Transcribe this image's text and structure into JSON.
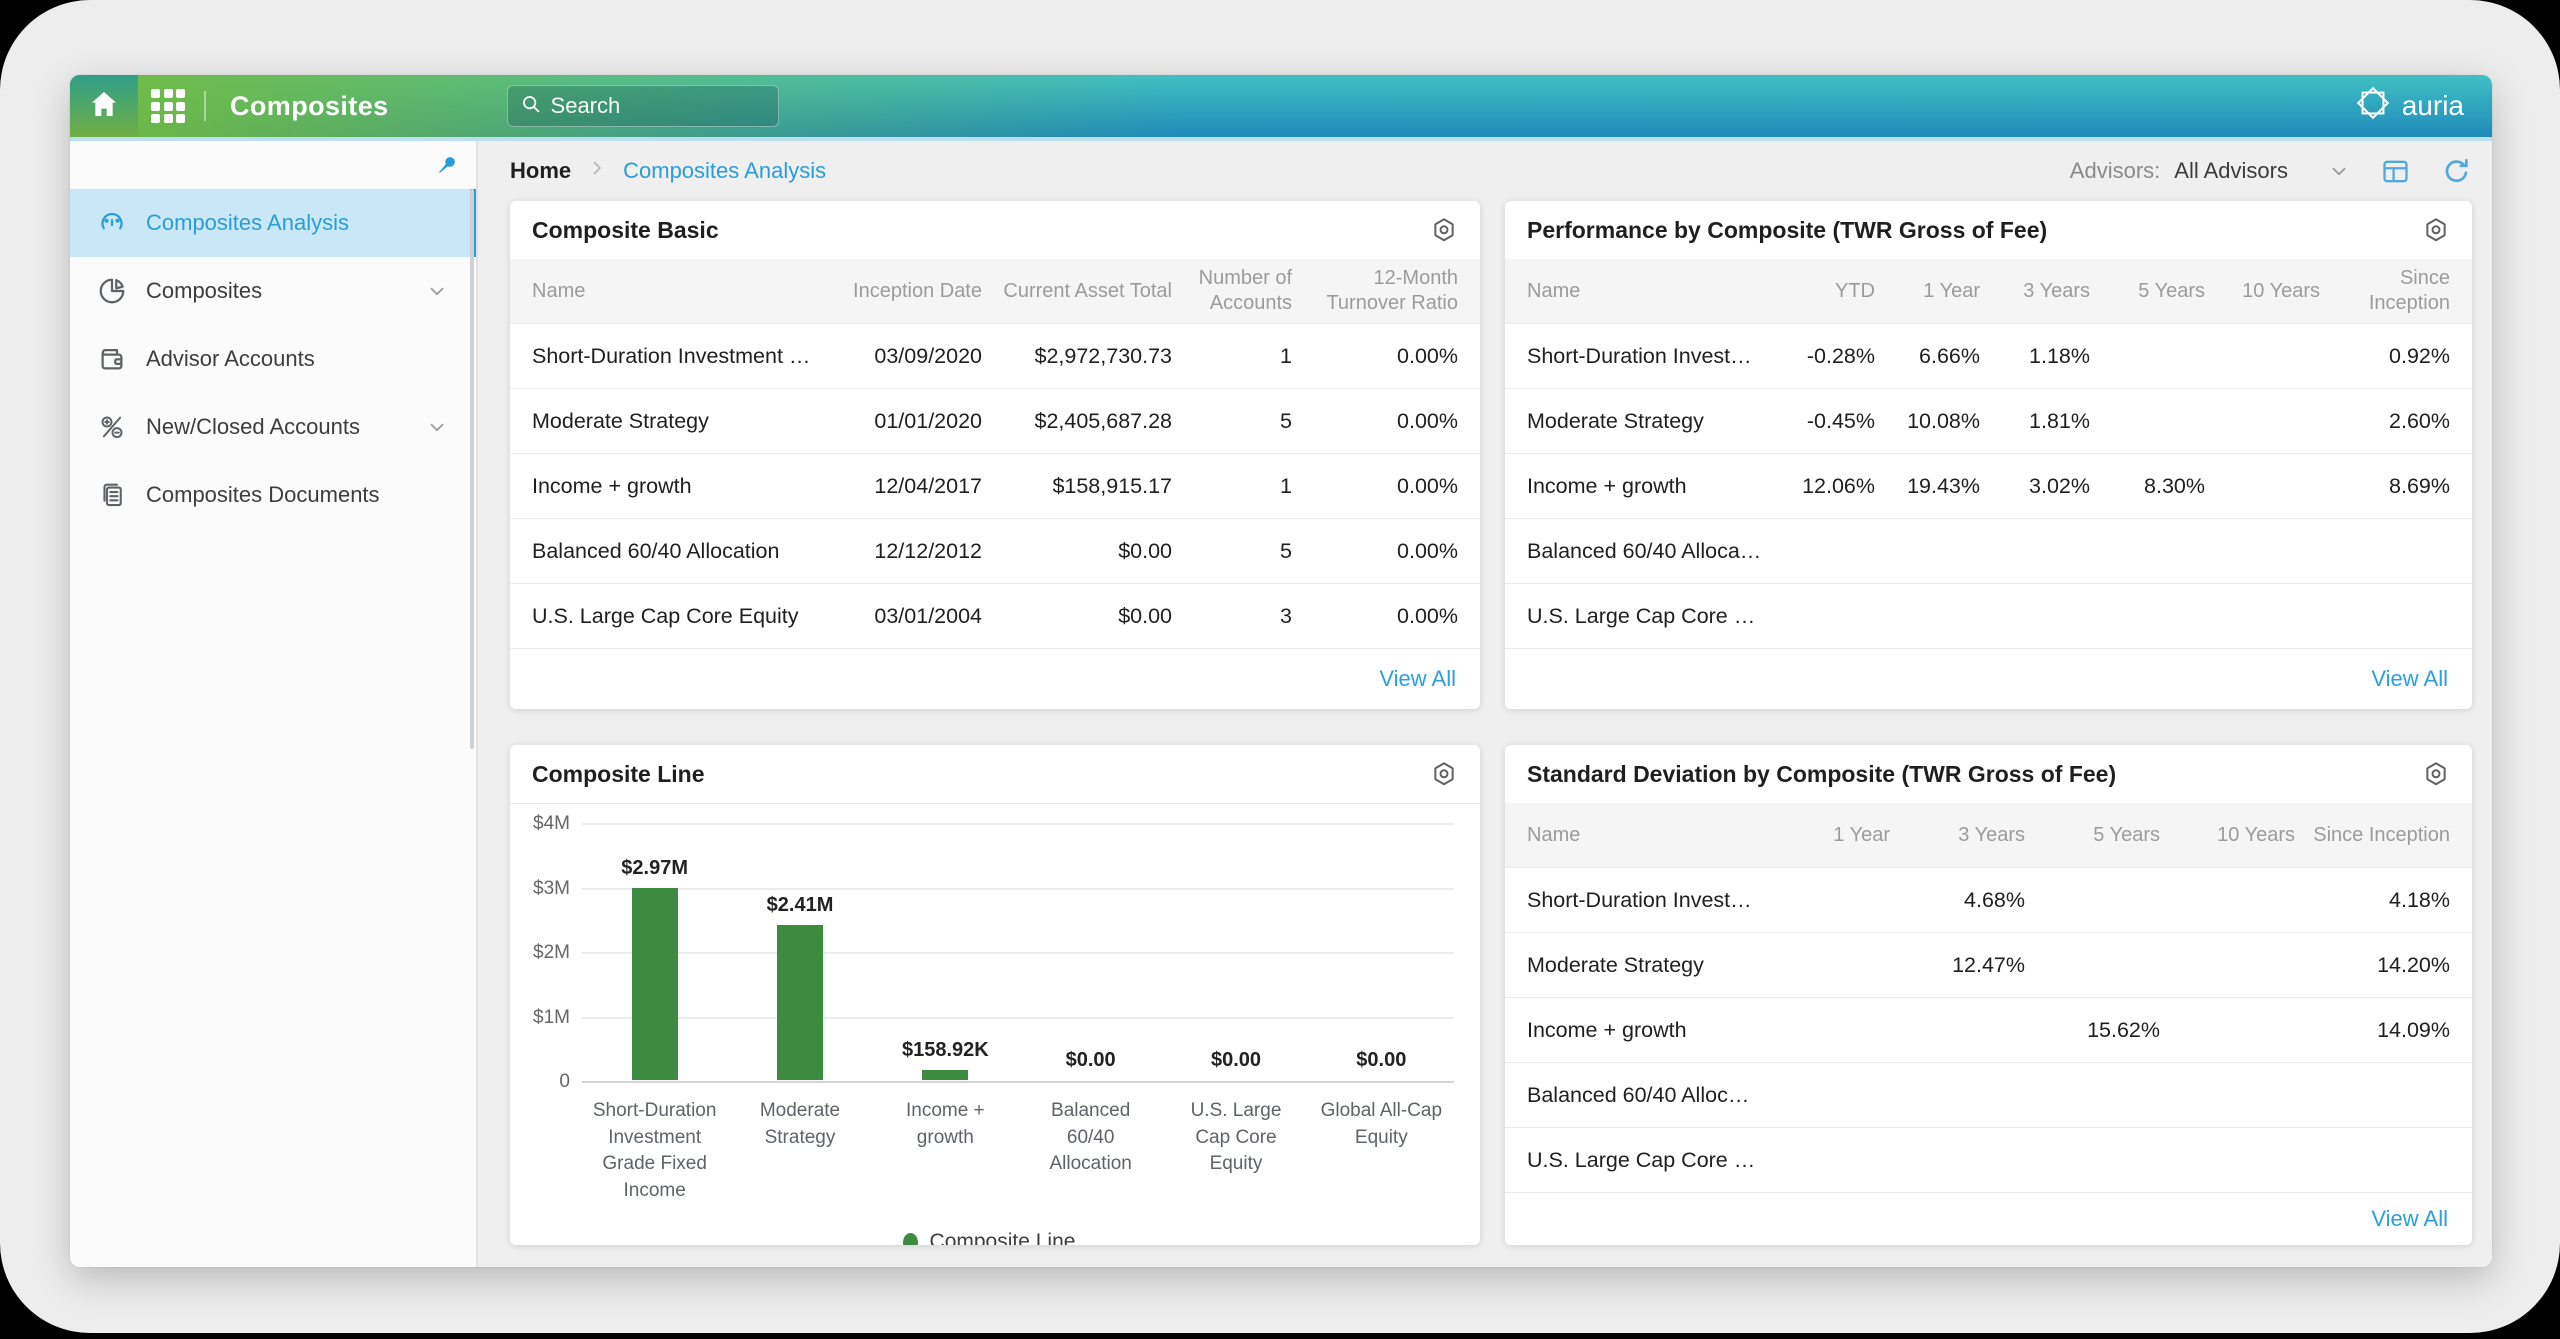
{
  "topbar": {
    "title": "Composites",
    "search_placeholder": "Search",
    "brand": "auria"
  },
  "breadcrumb": {
    "home": "Home",
    "current": "Composites Analysis"
  },
  "toolbar": {
    "advisors_label": "Advisors:",
    "advisors_value": "All Advisors"
  },
  "sidebar": {
    "items": [
      {
        "id": "composites-analysis",
        "label": "Composites Analysis",
        "icon": "gauge-icon",
        "active": true
      },
      {
        "id": "composites",
        "label": "Composites",
        "icon": "pie-icon",
        "expandable": true
      },
      {
        "id": "advisor-accounts",
        "label": "Advisor Accounts",
        "icon": "wallet-icon"
      },
      {
        "id": "new-closed-accounts",
        "label": "New/Closed Accounts",
        "icon": "plus-minus-icon",
        "expandable": true
      },
      {
        "id": "composites-documents",
        "label": "Composites Documents",
        "icon": "documents-icon"
      }
    ]
  },
  "cards": {
    "composite_basic": {
      "title": "Composite Basic",
      "columns": [
        "Name",
        "Inception Date",
        "Current Asset Total",
        "Number of Accounts",
        "12-Month Turnover Ratio"
      ],
      "rows": [
        [
          "Short-Duration Investment G…",
          "03/09/2020",
          "$2,972,730.73",
          "1",
          "0.00%"
        ],
        [
          "Moderate Strategy",
          "01/01/2020",
          "$2,405,687.28",
          "5",
          "0.00%"
        ],
        [
          "Income + growth",
          "12/04/2017",
          "$158,915.17",
          "1",
          "0.00%"
        ],
        [
          "Balanced 60/40 Allocation",
          "12/12/2012",
          "$0.00",
          "5",
          "0.00%"
        ],
        [
          "U.S. Large Cap Core Equity",
          "03/01/2004",
          "$0.00",
          "3",
          "0.00%"
        ]
      ],
      "view_all": "View All"
    },
    "performance": {
      "title": "Performance by Composite (TWR Gross of Fee)",
      "columns": [
        "Name",
        "YTD",
        "1 Year",
        "3 Years",
        "5 Years",
        "10 Years",
        "Since Inception"
      ],
      "rows": [
        [
          "Short-Duration Investm…",
          "-0.28%",
          "6.66%",
          "1.18%",
          "",
          "",
          "0.92%"
        ],
        [
          "Moderate Strategy",
          "-0.45%",
          "10.08%",
          "1.81%",
          "",
          "",
          "2.60%"
        ],
        [
          "Income + growth",
          "12.06%",
          "19.43%",
          "3.02%",
          "8.30%",
          "",
          "8.69%"
        ],
        [
          "Balanced 60/40 Allocati…",
          "",
          "",
          "",
          "",
          "",
          ""
        ],
        [
          "U.S. Large Cap Core Eq…",
          "",
          "",
          "",
          "",
          "",
          ""
        ]
      ],
      "view_all": "View All"
    },
    "std_dev": {
      "title": "Standard Deviation by Composite (TWR Gross of Fee)",
      "columns": [
        "Name",
        "1 Year",
        "3 Years",
        "5 Years",
        "10 Years",
        "Since Inception"
      ],
      "rows": [
        [
          "Short-Duration Investme…",
          "",
          "4.68%",
          "",
          "",
          "4.18%"
        ],
        [
          "Moderate Strategy",
          "",
          "12.47%",
          "",
          "",
          "14.20%"
        ],
        [
          "Income + growth",
          "",
          "",
          "15.62%",
          "",
          "14.09%"
        ],
        [
          "Balanced 60/40 Allocati…",
          "",
          "",
          "",
          "",
          ""
        ],
        [
          "U.S. Large Cap Core Equ…",
          "",
          "",
          "",
          "",
          ""
        ]
      ],
      "view_all": "View All"
    }
  },
  "chart_data": {
    "type": "bar",
    "title": "Composite Line",
    "categories": [
      "Short-Duration Investment Grade Fixed Income",
      "Moderate Strategy",
      "Income + growth",
      "Balanced 60/40 Allocation",
      "U.S. Large Cap Core Equity",
      "Global All-Cap Equity"
    ],
    "values": [
      2972730.73,
      2405687.28,
      158915.17,
      0,
      0,
      0
    ],
    "value_labels": [
      "$2.97M",
      "$2.41M",
      "$158.92K",
      "$0.00",
      "$0.00",
      "$0.00"
    ],
    "yticks": [
      "$4M",
      "$3M",
      "$2M",
      "$1M",
      "0"
    ],
    "ylim": [
      0,
      4000000
    ],
    "grid": true,
    "legend": "Composite Line",
    "legend_position": "bottom",
    "bar_color": "#3d8b41"
  },
  "colors": {
    "accent_blue": "#2b9cd8",
    "link_blue": "#2b9fdd",
    "bar_green": "#3d8b41"
  }
}
